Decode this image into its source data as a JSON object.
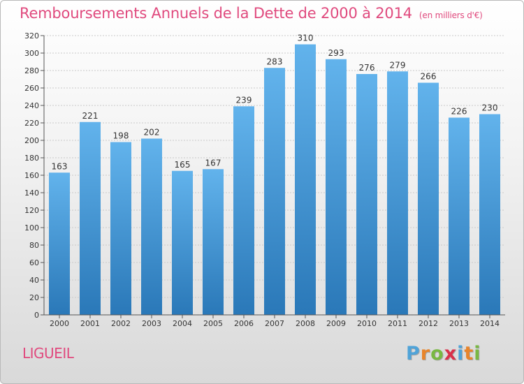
{
  "title": "Remboursements Annuels de la Dette de 2000 à 2014",
  "unit": "(en milliers d'€)",
  "commune": "LIGUEIL",
  "logo": {
    "letters": [
      "P",
      "r",
      "o",
      "x",
      "i",
      "t",
      "i"
    ],
    "colors": [
      "#4fa3d8",
      "#e8842a",
      "#79b843",
      "#d9304a",
      "#4fa3d8",
      "#e8842a",
      "#79b843"
    ]
  },
  "colors": {
    "accent": "#e04a7e",
    "bar_light": "#62b3ec",
    "bar_dark": "#2a78b8"
  },
  "chart_data": {
    "type": "bar",
    "categories": [
      "2000",
      "2001",
      "2002",
      "2003",
      "2004",
      "2005",
      "2006",
      "2007",
      "2008",
      "2009",
      "2010",
      "2011",
      "2012",
      "2013",
      "2014"
    ],
    "values": [
      163,
      221,
      198,
      202,
      165,
      167,
      239,
      283,
      310,
      293,
      276,
      279,
      266,
      226,
      230
    ],
    "ylim": [
      0,
      320
    ],
    "yticks": [
      0,
      20,
      40,
      60,
      80,
      100,
      120,
      140,
      160,
      180,
      200,
      220,
      240,
      260,
      280,
      300,
      320
    ],
    "grid": true
  }
}
